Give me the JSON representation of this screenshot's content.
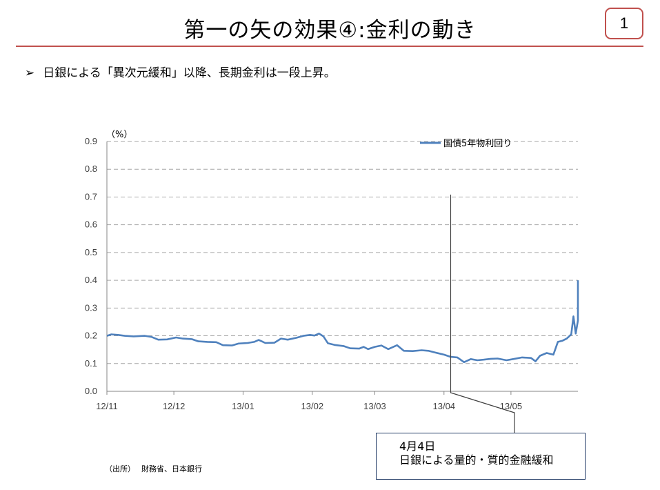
{
  "slide": {
    "title": "第一の矢の効果④:金利の動き",
    "page_number": "1",
    "bullet_mark": "➢",
    "bullet_text": "日銀による「異次元緩和」以降、長期金利は一段上昇。",
    "source": "（出所）　 財務省、日本銀行",
    "callout_line1": "4月4日",
    "callout_line2": "日銀による量的・質的金融緩和"
  },
  "colors": {
    "accent": "#c0504d",
    "series5y": "#4f81bd",
    "series10y": "#c0504d",
    "seriesCall": "#9bbb59",
    "callout_border": "#1f3864"
  },
  "chart_data": {
    "type": "line",
    "ylabel": "（%）",
    "ylim": [
      0,
      0.9
    ],
    "yticks": [
      "0.0",
      "0.1",
      "0.2",
      "0.3",
      "0.4",
      "0.5",
      "0.6",
      "0.7",
      "0.8",
      "0.9"
    ],
    "xlim": [
      "2012-11-01",
      "2013-05-31"
    ],
    "xticks": [
      {
        "label": "12/11",
        "date": "2012-11-01"
      },
      {
        "label": "12/12",
        "date": "2012-12-01"
      },
      {
        "label": "13/01",
        "date": "2013-01-01"
      },
      {
        "label": "13/02",
        "date": "2013-02-01"
      },
      {
        "label": "13/03",
        "date": "2013-03-01"
      },
      {
        "label": "13/04",
        "date": "2013-04-01"
      },
      {
        "label": "13/05",
        "date": "2013-05-01"
      }
    ],
    "grid": "horizontal-dashed",
    "legend": "top-right",
    "annotation_date": "2013-04-04",
    "series": [
      {
        "name": "国債5年物利回り",
        "color": "#4f81bd",
        "points": [
          [
            "2012-11-01",
            0.2
          ],
          [
            "2012-11-03",
            0.205
          ],
          [
            "2012-11-06",
            0.203
          ],
          [
            "2012-11-09",
            0.2
          ],
          [
            "2012-11-13",
            0.198
          ],
          [
            "2012-11-18",
            0.2
          ],
          [
            "2012-11-21",
            0.196
          ],
          [
            "2012-11-24",
            0.186
          ],
          [
            "2012-11-28",
            0.187
          ],
          [
            "2012-12-02",
            0.194
          ],
          [
            "2012-12-05",
            0.19
          ],
          [
            "2012-12-09",
            0.188
          ],
          [
            "2012-12-12",
            0.18
          ],
          [
            "2012-12-16",
            0.178
          ],
          [
            "2012-12-20",
            0.177
          ],
          [
            "2012-12-23",
            0.166
          ],
          [
            "2012-12-27",
            0.165
          ],
          [
            "2012-12-30",
            0.172
          ],
          [
            "2013-01-03",
            0.174
          ],
          [
            "2013-01-06",
            0.178
          ],
          [
            "2013-01-08",
            0.185
          ],
          [
            "2013-01-11",
            0.174
          ],
          [
            "2013-01-15",
            0.175
          ],
          [
            "2013-01-18",
            0.19
          ],
          [
            "2013-01-21",
            0.186
          ],
          [
            "2013-01-25",
            0.193
          ],
          [
            "2013-01-28",
            0.2
          ],
          [
            "2013-01-31",
            0.203
          ],
          [
            "2013-02-02",
            0.201
          ],
          [
            "2013-02-04",
            0.208
          ],
          [
            "2013-02-06",
            0.198
          ],
          [
            "2013-02-08",
            0.173
          ],
          [
            "2013-02-11",
            0.167
          ],
          [
            "2013-02-15",
            0.163
          ],
          [
            "2013-02-18",
            0.155
          ],
          [
            "2013-02-22",
            0.154
          ],
          [
            "2013-02-24",
            0.16
          ],
          [
            "2013-02-26",
            0.152
          ],
          [
            "2013-03-01",
            0.16
          ],
          [
            "2013-03-04",
            0.165
          ],
          [
            "2013-03-07",
            0.152
          ],
          [
            "2013-03-11",
            0.166
          ],
          [
            "2013-03-14",
            0.146
          ],
          [
            "2013-03-18",
            0.145
          ],
          [
            "2013-03-22",
            0.148
          ],
          [
            "2013-03-25",
            0.146
          ],
          [
            "2013-03-28",
            0.14
          ],
          [
            "2013-04-01",
            0.132
          ],
          [
            "2013-04-04",
            0.124
          ],
          [
            "2013-04-07",
            0.122
          ],
          [
            "2013-04-10",
            0.105
          ],
          [
            "2013-04-13",
            0.116
          ],
          [
            "2013-04-16",
            0.112
          ],
          [
            "2013-04-19",
            0.114
          ],
          [
            "2013-04-22",
            0.117
          ],
          [
            "2013-04-25",
            0.118
          ],
          [
            "2013-04-29",
            0.112
          ],
          [
            "2013-05-02",
            0.116
          ],
          [
            "2013-05-06",
            0.122
          ],
          [
            "2013-05-10",
            0.12
          ],
          [
            "2013-05-12",
            0.108
          ],
          [
            "2013-05-14",
            0.128
          ],
          [
            "2013-05-17",
            0.138
          ],
          [
            "2013-05-20",
            0.132
          ],
          [
            "2013-05-22",
            0.178
          ],
          [
            "2013-05-24",
            0.182
          ],
          [
            "2013-05-26",
            0.19
          ],
          [
            "2013-05-28",
            0.205
          ],
          [
            "2013-05-29",
            0.27
          ],
          [
            "2013-05-30",
            0.208
          ],
          [
            "2013-05-31",
            0.255
          ],
          [
            "2013-05-31",
            0.4
          ]
        ]
      }
    ]
  }
}
